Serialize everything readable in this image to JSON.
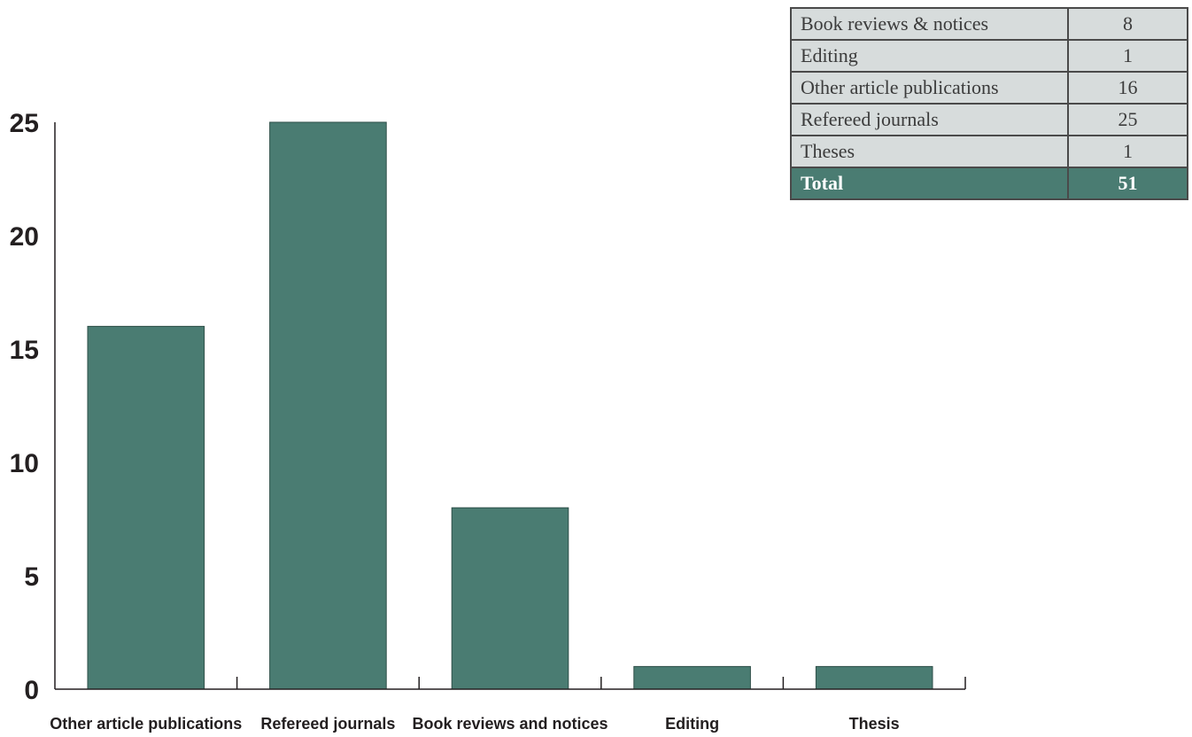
{
  "chart_data": {
    "type": "bar",
    "categories": [
      "Other article publications",
      "Refereed journals",
      "Book reviews and notices",
      "Editing",
      "Thesis"
    ],
    "values": [
      16,
      25,
      8,
      1,
      1
    ],
    "ylim": [
      0,
      25
    ],
    "yticks": [
      "0",
      "5",
      "10",
      "15",
      "20",
      "25"
    ],
    "grid": false,
    "bar_color": "#4a7c72"
  },
  "table": {
    "rows": [
      {
        "label": "Book reviews & notices",
        "value": "8"
      },
      {
        "label": "Editing",
        "value": "1"
      },
      {
        "label": "Other article publications",
        "value": "16"
      },
      {
        "label": "Refereed journals",
        "value": "25"
      },
      {
        "label": "Theses",
        "value": "1"
      }
    ],
    "total": {
      "label": "Total",
      "value": "51"
    },
    "header_color": "#4a7c72",
    "cell_color": "#d7dcdc"
  }
}
